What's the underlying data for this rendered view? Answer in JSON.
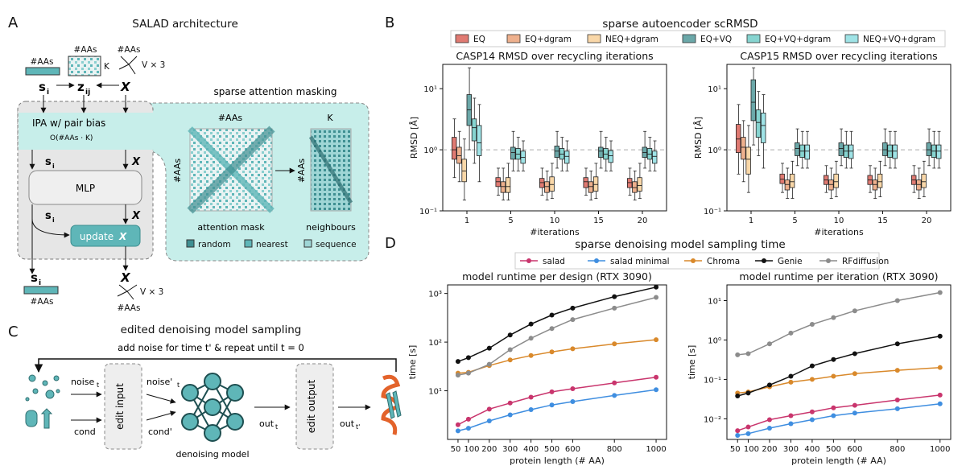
{
  "panelA": {
    "letter": "A",
    "title": "SALAD architecture",
    "si": "s",
    "si_sub": "i",
    "zij": "z",
    "zij_sub": "ij",
    "x": "X",
    "n_aas": "#AAs",
    "k": "K",
    "vx3": "V × 3",
    "ipa_label": "IPA w/ pair bias",
    "ipa_complexity": "O(#AAs · K)",
    "mlp": "MLP",
    "update": "update",
    "masking_title": "sparse attention masking",
    "attention_mask_label": "attention mask",
    "neighbours_label": "neighbours",
    "legend": [
      "random",
      "nearest",
      "sequence"
    ]
  },
  "panelB": {
    "letter": "B",
    "title": "sparse autoencoder scRMSD",
    "legend": [
      {
        "name": "EQ",
        "color": "#e07a72"
      },
      {
        "name": "EQ+dgram",
        "color": "#eeb08d"
      },
      {
        "name": "NEQ+dgram",
        "color": "#f9d7a8"
      },
      {
        "name": "EQ+VQ",
        "color": "#6ba8a9"
      },
      {
        "name": "EQ+VQ+dgram",
        "color": "#86d4d0"
      },
      {
        "name": "NEQ+VQ+dgram",
        "color": "#9fe3e6"
      }
    ]
  },
  "panelC": {
    "letter": "C",
    "title": "edited denoising model sampling",
    "loop_label": "add noise for time t' & repeat until t = 0",
    "noise": "noise",
    "noise_sub": "t",
    "noise2": "noise'",
    "noise2_sub": "t",
    "cond": "cond",
    "cond2": "cond'",
    "edit_input": "edit input",
    "edit_output": "edit output",
    "out": "out",
    "out_sub": "t",
    "out2": "out",
    "out2_sub": "t'",
    "denoising_model": "denoising model"
  },
  "panelD": {
    "letter": "D",
    "title": "sparse denoising model sampling time",
    "legend": [
      {
        "name": "salad",
        "color": "#c9356d"
      },
      {
        "name": "salad minimal",
        "color": "#3f8ee0"
      },
      {
        "name": "Chroma",
        "color": "#d9892b"
      },
      {
        "name": "Genie",
        "color": "#111111"
      },
      {
        "name": "RFdiffusion",
        "color": "#8c8c8c"
      }
    ]
  },
  "chart_data": [
    {
      "type": "box",
      "title": "CASP14 RMSD over recycling iterations",
      "xlabel": "#iterations",
      "ylabel": "RMSD [Å]",
      "yscale": "log",
      "ylim": [
        0.1,
        25
      ],
      "yticks": [
        "10⁻¹",
        "10⁰",
        "10¹"
      ],
      "reference_line": 1,
      "categories": [
        "1",
        "5",
        "10",
        "15",
        "20"
      ],
      "series": [
        {
          "name": "EQ",
          "boxes": [
            [
              0.35,
              0.7,
              1.0,
              1.6,
              3.2
            ],
            [
              0.18,
              0.25,
              0.3,
              0.35,
              0.5
            ],
            [
              0.18,
              0.24,
              0.29,
              0.34,
              0.5
            ],
            [
              0.18,
              0.24,
              0.3,
              0.35,
              0.5
            ],
            [
              0.18,
              0.24,
              0.29,
              0.34,
              0.5
            ]
          ]
        },
        {
          "name": "EQ+dgram",
          "boxes": [
            [
              0.3,
              0.6,
              0.8,
              1.1,
              2.0
            ],
            [
              0.15,
              0.2,
              0.25,
              0.3,
              0.5
            ],
            [
              0.15,
              0.2,
              0.25,
              0.3,
              0.45
            ],
            [
              0.15,
              0.2,
              0.25,
              0.3,
              0.45
            ],
            [
              0.15,
              0.2,
              0.24,
              0.3,
              0.45
            ]
          ]
        },
        {
          "name": "NEQ+dgram",
          "boxes": [
            [
              0.15,
              0.3,
              0.45,
              0.7,
              1.5
            ],
            [
              0.15,
              0.2,
              0.25,
              0.35,
              0.6
            ],
            [
              0.16,
              0.21,
              0.27,
              0.36,
              0.6
            ],
            [
              0.16,
              0.21,
              0.27,
              0.36,
              0.6
            ],
            [
              0.16,
              0.21,
              0.26,
              0.35,
              0.6
            ]
          ]
        },
        {
          "name": "EQ+VQ",
          "boxes": [
            [
              1.0,
              2.5,
              4.5,
              8.0,
              22.0
            ],
            [
              0.45,
              0.7,
              0.9,
              1.1,
              2.0
            ],
            [
              0.5,
              0.75,
              0.95,
              1.15,
              2.0
            ],
            [
              0.5,
              0.75,
              0.95,
              1.1,
              2.0
            ],
            [
              0.5,
              0.75,
              0.9,
              1.1,
              2.0
            ]
          ]
        },
        {
          "name": "EQ+VQ+dgram",
          "boxes": [
            [
              0.6,
              1.4,
              2.3,
              3.2,
              7.0
            ],
            [
              0.45,
              0.7,
              0.85,
              1.05,
              1.6
            ],
            [
              0.45,
              0.7,
              0.85,
              1.05,
              1.6
            ],
            [
              0.45,
              0.7,
              0.85,
              1.05,
              1.6
            ],
            [
              0.45,
              0.7,
              0.85,
              1.05,
              1.6
            ]
          ]
        },
        {
          "name": "NEQ+VQ+dgram",
          "boxes": [
            [
              0.3,
              0.8,
              1.3,
              2.5,
              5.5
            ],
            [
              0.45,
              0.6,
              0.75,
              0.95,
              1.4
            ],
            [
              0.45,
              0.6,
              0.78,
              0.95,
              1.4
            ],
            [
              0.45,
              0.62,
              0.8,
              0.97,
              1.4
            ],
            [
              0.45,
              0.6,
              0.78,
              0.95,
              1.4
            ]
          ]
        }
      ]
    },
    {
      "type": "box",
      "title": "CASP15 RMSD over recycling iterations",
      "xlabel": "#iterations",
      "ylabel": "RMSD [Å]",
      "yscale": "log",
      "ylim": [
        0.1,
        25
      ],
      "yticks": [
        "10⁻¹",
        "10⁰",
        "10¹"
      ],
      "reference_line": 1,
      "categories": [
        "1",
        "5",
        "10",
        "15",
        "20"
      ],
      "series": [
        {
          "name": "EQ",
          "boxes": [
            [
              0.4,
              0.9,
              1.5,
              2.6,
              5.5
            ],
            [
              0.2,
              0.28,
              0.33,
              0.4,
              0.6
            ],
            [
              0.2,
              0.27,
              0.32,
              0.38,
              0.55
            ],
            [
              0.2,
              0.27,
              0.32,
              0.38,
              0.55
            ],
            [
              0.2,
              0.27,
              0.32,
              0.38,
              0.55
            ]
          ]
        },
        {
          "name": "EQ+dgram",
          "boxes": [
            [
              0.3,
              0.7,
              1.1,
              1.6,
              3.0
            ],
            [
              0.16,
              0.22,
              0.27,
              0.32,
              0.5
            ],
            [
              0.16,
              0.22,
              0.27,
              0.32,
              0.5
            ],
            [
              0.16,
              0.22,
              0.27,
              0.32,
              0.5
            ],
            [
              0.16,
              0.22,
              0.27,
              0.32,
              0.5
            ]
          ]
        },
        {
          "name": "NEQ+dgram",
          "boxes": [
            [
              0.2,
              0.4,
              0.7,
              1.1,
              2.5
            ],
            [
              0.16,
              0.24,
              0.3,
              0.4,
              0.65
            ],
            [
              0.17,
              0.24,
              0.3,
              0.4,
              0.65
            ],
            [
              0.17,
              0.24,
              0.3,
              0.4,
              0.65
            ],
            [
              0.17,
              0.24,
              0.3,
              0.4,
              0.65
            ]
          ]
        },
        {
          "name": "EQ+VQ",
          "boxes": [
            [
              1.2,
              3.0,
              6.0,
              14.0,
              22.0
            ],
            [
              0.55,
              0.8,
              1.05,
              1.3,
              2.2
            ],
            [
              0.55,
              0.8,
              1.05,
              1.3,
              2.2
            ],
            [
              0.55,
              0.8,
              1.0,
              1.3,
              2.2
            ],
            [
              0.55,
              0.8,
              1.0,
              1.3,
              2.2
            ]
          ]
        },
        {
          "name": "EQ+VQ+dgram",
          "boxes": [
            [
              0.8,
              1.6,
              2.8,
              4.5,
              9.0
            ],
            [
              0.5,
              0.75,
              0.95,
              1.2,
              2.0
            ],
            [
              0.5,
              0.75,
              0.95,
              1.2,
              2.0
            ],
            [
              0.5,
              0.75,
              0.95,
              1.2,
              2.0
            ],
            [
              0.5,
              0.75,
              0.95,
              1.2,
              2.0
            ]
          ]
        },
        {
          "name": "NEQ+VQ+dgram",
          "boxes": [
            [
              0.5,
              1.3,
              2.5,
              4.0,
              8.0
            ],
            [
              0.5,
              0.7,
              0.95,
              1.2,
              2.0
            ],
            [
              0.5,
              0.72,
              0.95,
              1.2,
              2.0
            ],
            [
              0.5,
              0.72,
              0.95,
              1.2,
              2.0
            ],
            [
              0.5,
              0.72,
              0.95,
              1.2,
              2.0
            ]
          ]
        }
      ]
    },
    {
      "type": "line",
      "title": "model runtime per design (RTX 3090)",
      "xlabel": "protein length (# AA)",
      "ylabel": "time [s]",
      "yscale": "log",
      "ylim": [
        1,
        1500
      ],
      "yticks": [
        "10¹",
        "10²",
        "10³"
      ],
      "x": [
        50,
        100,
        200,
        300,
        400,
        500,
        600,
        800,
        1000
      ],
      "xticks": [
        "50",
        "100",
        "200",
        "300",
        "400",
        "500",
        "600",
        "800",
        "1000"
      ],
      "series": [
        {
          "name": "salad",
          "values": [
            2.0,
            2.6,
            4.2,
            5.6,
            7.4,
            9.5,
            11.0,
            14.5,
            19.0
          ]
        },
        {
          "name": "salad minimal",
          "values": [
            1.5,
            1.7,
            2.4,
            3.2,
            4.1,
            5.1,
            6.0,
            8.0,
            10.5
          ]
        },
        {
          "name": "Chroma",
          "values": [
            23,
            24,
            33,
            43,
            53,
            63,
            73,
            92,
            112
          ]
        },
        {
          "name": "Genie",
          "values": [
            40,
            48,
            75,
            140,
            235,
            360,
            500,
            860,
            1350
          ]
        },
        {
          "name": "RFdiffusion",
          "values": [
            21,
            23,
            35,
            70,
            120,
            190,
            290,
            500,
            830
          ]
        }
      ]
    },
    {
      "type": "line",
      "title": "model runtime per iteration (RTX 3090)",
      "xlabel": "protein length (# AA)",
      "ylabel": "time [s]",
      "yscale": "log",
      "ylim": [
        0.003,
        25
      ],
      "yticks": [
        "10⁻²",
        "10⁻¹",
        "10⁰",
        "10¹"
      ],
      "x": [
        50,
        100,
        200,
        300,
        400,
        500,
        600,
        800,
        1000
      ],
      "xticks": [
        "50",
        "100",
        "200",
        "300",
        "400",
        "500",
        "600",
        "800",
        "1000"
      ],
      "series": [
        {
          "name": "salad",
          "values": [
            0.005,
            0.0062,
            0.0095,
            0.012,
            0.015,
            0.019,
            0.022,
            0.03,
            0.04
          ]
        },
        {
          "name": "salad minimal",
          "values": [
            0.0038,
            0.0042,
            0.0058,
            0.0075,
            0.0095,
            0.012,
            0.014,
            0.018,
            0.024
          ]
        },
        {
          "name": "Chroma",
          "values": [
            0.045,
            0.048,
            0.065,
            0.085,
            0.1,
            0.12,
            0.14,
            0.17,
            0.2
          ]
        },
        {
          "name": "Genie",
          "values": [
            0.038,
            0.045,
            0.072,
            0.12,
            0.22,
            0.32,
            0.45,
            0.8,
            1.25
          ]
        },
        {
          "name": "RFdiffusion",
          "values": [
            0.42,
            0.45,
            0.8,
            1.5,
            2.5,
            3.7,
            5.5,
            10.0,
            16.0
          ]
        }
      ]
    }
  ]
}
